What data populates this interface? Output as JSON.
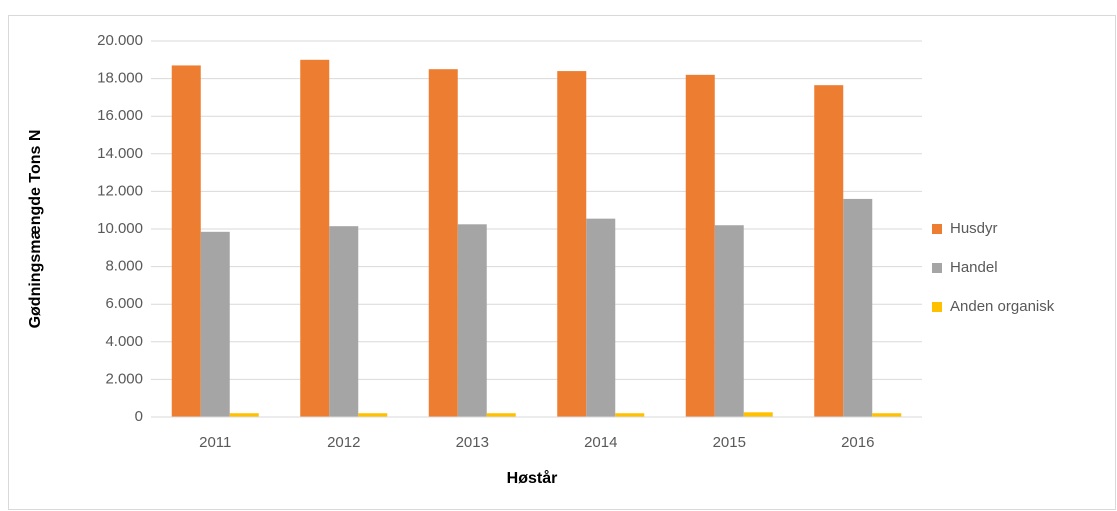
{
  "chart_data": {
    "type": "bar",
    "y_label": "Gødningsmængde Tons N",
    "x_label": "Høstår",
    "categories": [
      "2011",
      "2012",
      "2013",
      "2014",
      "2015",
      "2016"
    ],
    "series": [
      {
        "name": "Husdyr",
        "color": "#ED7D31",
        "values": [
          18700,
          19000,
          18500,
          18400,
          18200,
          17650
        ]
      },
      {
        "name": "Handel",
        "color": "#A5A5A5",
        "values": [
          9850,
          10150,
          10250,
          10550,
          10200,
          11600
        ]
      },
      {
        "name": "Anden organisk",
        "color": "#FFC000",
        "values": [
          200,
          200,
          200,
          200,
          250,
          200
        ]
      }
    ],
    "ylim": [
      0,
      20000
    ],
    "yticks": [
      0,
      {
        "value": 2000,
        "label": "2.000"
      },
      {
        "value": 4000,
        "label": "4.000"
      },
      {
        "value": 6000,
        "label": "6.000"
      },
      {
        "value": 8000,
        "label": "8.000"
      },
      {
        "value": 10000,
        "label": "10.000"
      },
      {
        "value": 12000,
        "label": "12.000"
      },
      {
        "value": 14000,
        "label": "14.000"
      },
      {
        "value": 16000,
        "label": "16.000"
      },
      {
        "value": 18000,
        "label": "18.000"
      },
      {
        "value": 20000,
        "label": "20.000"
      }
    ],
    "grid": true,
    "legend": "right"
  }
}
